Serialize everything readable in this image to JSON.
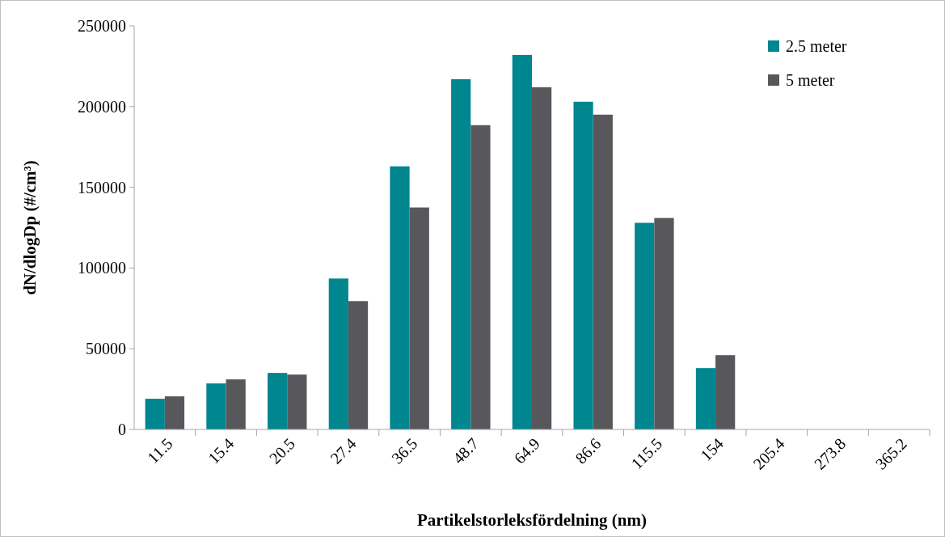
{
  "chart_data": {
    "type": "bar",
    "xlabel": "Partikelstorleksfördelning (nm)",
    "ylabel": "dN/dlogDp (#/cm³)",
    "categories": [
      "11.5",
      "15.4",
      "20.5",
      "27.4",
      "36.5",
      "48.7",
      "64.9",
      "86.6",
      "115.5",
      "154",
      "205.4",
      "273.8",
      "365.2"
    ],
    "series": [
      {
        "name": "2.5 meter",
        "color": "#00868f",
        "values": [
          19000,
          28500,
          35000,
          93500,
          163000,
          217000,
          232000,
          203000,
          128000,
          38000,
          0,
          0,
          0
        ]
      },
      {
        "name": "5 meter",
        "color": "#58585c",
        "values": [
          20500,
          31000,
          34000,
          79500,
          137500,
          188500,
          212000,
          195000,
          131000,
          46000,
          0,
          0,
          0
        ]
      }
    ],
    "ylim": [
      0,
      250000
    ],
    "yticks": [
      0,
      50000,
      100000,
      150000,
      200000,
      250000
    ],
    "grid": false,
    "legend": "top right"
  }
}
